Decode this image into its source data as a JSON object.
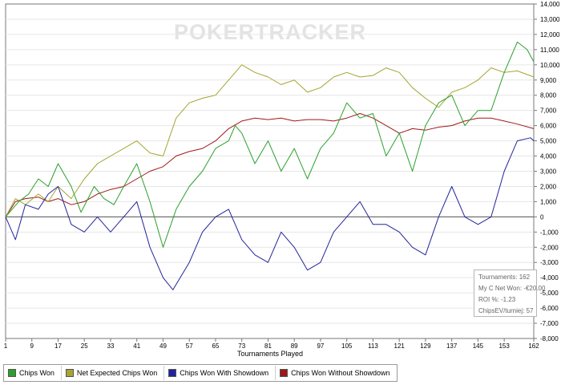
{
  "watermark": "POKERTRACKER",
  "stats": {
    "tournaments": "Tournaments: 162",
    "net_won": "My C Net Won: -€20.00",
    "roi": "ROI %: -1.23",
    "chipsev": "ChipsEV/turniej: 57"
  },
  "legend": [
    {
      "label": "Chips Won",
      "color": "#2ca02c"
    },
    {
      "label": "Net Expected Chips Won",
      "color": "#a5a530"
    },
    {
      "label": "Chips Won With Showdown",
      "color": "#22249a"
    },
    {
      "label": "Chips Won Without Showdown",
      "color": "#a01818"
    }
  ],
  "chart_data": {
    "type": "line",
    "xlabel": "Tournaments Played",
    "ylabel": "",
    "xlim": [
      1,
      162
    ],
    "ylim": [
      -8000,
      14000
    ],
    "x_ticks": [
      1,
      9,
      17,
      25,
      33,
      41,
      49,
      57,
      65,
      73,
      81,
      89,
      97,
      105,
      113,
      121,
      129,
      137,
      145,
      153,
      162
    ],
    "y_ticks": [
      -8000,
      -7000,
      -6000,
      -5000,
      -4000,
      -3000,
      -2000,
      -1000,
      0,
      1000,
      2000,
      3000,
      4000,
      5000,
      6000,
      7000,
      8000,
      9000,
      10000,
      11000,
      12000,
      13000,
      14000
    ],
    "y_tick_labels": [
      "-8,000",
      "-7,000",
      "-6,000",
      "-5,000",
      "-4,000",
      "-3,000",
      "-2,000",
      "-1,000",
      "0",
      "1,000",
      "2,000",
      "3,000",
      "4,000",
      "5,000",
      "6,000",
      "7,000",
      "8,000",
      "9,000",
      "10,000",
      "11,000",
      "12,000",
      "13,000",
      "14,000"
    ],
    "grid": "horizontal",
    "legend_position": "bottom-left",
    "series": [
      {
        "name": "Chips Won",
        "color": "#2ca02c",
        "x": [
          1,
          3,
          5,
          8,
          11,
          14,
          17,
          21,
          24,
          28,
          31,
          34,
          37,
          41,
          45,
          49,
          53,
          57,
          61,
          65,
          69,
          71,
          73,
          77,
          81,
          85,
          89,
          93,
          97,
          101,
          105,
          109,
          113,
          117,
          121,
          125,
          129,
          133,
          137,
          141,
          145,
          149,
          153,
          157,
          160,
          162
        ],
        "y": [
          0,
          500,
          1000,
          1500,
          2500,
          2000,
          3500,
          2000,
          300,
          2000,
          1200,
          800,
          2000,
          3500,
          1000,
          -2000,
          500,
          2000,
          3000,
          4500,
          5000,
          6000,
          5500,
          3500,
          5000,
          3000,
          4500,
          2500,
          4500,
          5500,
          7500,
          6500,
          6800,
          4000,
          5500,
          3000,
          6000,
          7500,
          8000,
          6000,
          7000,
          7000,
          9500,
          11500,
          11000,
          10200
        ]
      },
      {
        "name": "Net Expected Chips Won",
        "color": "#a5a530",
        "x": [
          1,
          4,
          7,
          11,
          14,
          17,
          21,
          25,
          29,
          33,
          37,
          41,
          45,
          49,
          53,
          57,
          61,
          65,
          69,
          73,
          77,
          81,
          85,
          89,
          93,
          97,
          101,
          105,
          109,
          113,
          117,
          121,
          125,
          129,
          133,
          137,
          141,
          145,
          149,
          153,
          157,
          162
        ],
        "y": [
          0,
          1200,
          800,
          1500,
          1000,
          2000,
          1200,
          2500,
          3500,
          4000,
          4500,
          5000,
          4200,
          4000,
          6500,
          7500,
          7800,
          8000,
          9000,
          10000,
          9500,
          9200,
          8700,
          9000,
          8200,
          8500,
          9200,
          9500,
          9200,
          9300,
          9800,
          9500,
          8500,
          7800,
          7200,
          8200,
          8500,
          9000,
          9800,
          9500,
          9600,
          9200
        ]
      },
      {
        "name": "Chips Won With Showdown",
        "color": "#22249a",
        "x": [
          1,
          4,
          7,
          11,
          14,
          17,
          21,
          25,
          29,
          33,
          37,
          41,
          45,
          49,
          52,
          57,
          61,
          65,
          69,
          73,
          77,
          81,
          85,
          89,
          93,
          97,
          101,
          105,
          109,
          113,
          117,
          121,
          125,
          129,
          133,
          137,
          141,
          145,
          149,
          153,
          157,
          161,
          162
        ],
        "y": [
          0,
          -1500,
          800,
          500,
          1500,
          2000,
          -500,
          -1000,
          0,
          -1000,
          0,
          1000,
          -2000,
          -4000,
          -4800,
          -3000,
          -1000,
          0,
          500,
          -1500,
          -2500,
          -3000,
          -1000,
          -2000,
          -3500,
          -3000,
          -1000,
          0,
          1000,
          -500,
          -500,
          -1000,
          -2000,
          -2500,
          0,
          2000,
          0,
          -500,
          0,
          3000,
          5000,
          5200,
          5000
        ]
      },
      {
        "name": "Chips Won Without Showdown",
        "color": "#a01818",
        "x": [
          1,
          4,
          7,
          11,
          14,
          17,
          21,
          25,
          29,
          33,
          37,
          41,
          45,
          49,
          53,
          57,
          61,
          65,
          69,
          73,
          77,
          81,
          85,
          89,
          93,
          97,
          101,
          105,
          109,
          113,
          117,
          121,
          125,
          129,
          133,
          137,
          141,
          145,
          149,
          153,
          157,
          162
        ],
        "y": [
          0,
          1000,
          1200,
          1300,
          1000,
          1200,
          800,
          1000,
          1500,
          1800,
          2000,
          2500,
          3000,
          3300,
          4000,
          4300,
          4500,
          5000,
          5800,
          6300,
          6500,
          6400,
          6500,
          6300,
          6400,
          6400,
          6300,
          6500,
          6800,
          6500,
          6000,
          5500,
          5800,
          5700,
          5900,
          6000,
          6300,
          6500,
          6500,
          6300,
          6100,
          5800
        ]
      }
    ]
  }
}
